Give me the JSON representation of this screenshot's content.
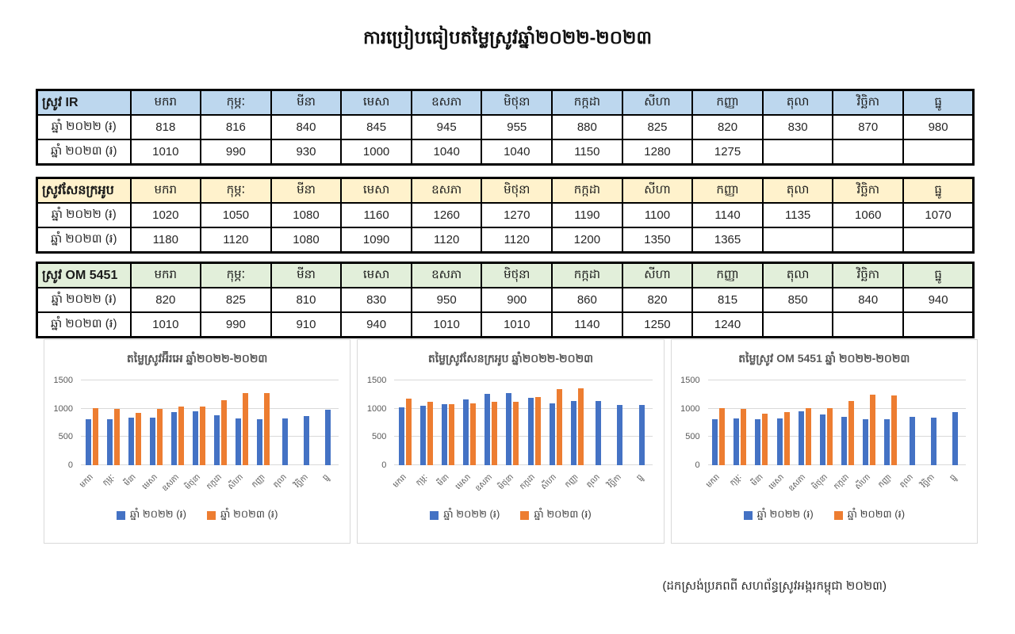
{
  "page": {
    "title": "ការប្រៀបធៀបតម្លៃស្រូវឆ្នាំ២០២២-២០២៣",
    "source_note": "(ដកស្រង់ប្រភពពី សហព័ន្ធស្រូវអង្ករកម្ពុជា ២០២៣)",
    "background": "#FFFFFF"
  },
  "months": [
    "មករា",
    "កុម្ភៈ",
    "មីនា",
    "មេសា",
    "ឧសភា",
    "មិថុនា",
    "កក្កដា",
    "សីហា",
    "កញ្ញា",
    "តុលា",
    "វិច្ឆិកា",
    "ធ្នូ"
  ],
  "tables": [
    {
      "id": "ir",
      "name": "ស្រូវ IR",
      "header_color": "#BDD7EE",
      "rows": [
        {
          "label": "ឆ្នាំ ២០២២ (៛)",
          "values": [
            818,
            816,
            840,
            845,
            945,
            955,
            880,
            825,
            820,
            830,
            870,
            980
          ]
        },
        {
          "label": "ឆ្នាំ ២០២៣ (៛)",
          "values": [
            1010,
            990,
            930,
            1000,
            1040,
            1040,
            1150,
            1280,
            1275,
            null,
            null,
            null
          ]
        }
      ]
    },
    {
      "id": "sen-kra-ob",
      "name": "ស្រូវសែនក្រអូប",
      "header_color": "#FFF2CC",
      "rows": [
        {
          "label": "ឆ្នាំ ២០២២ (៛)",
          "values": [
            1020,
            1050,
            1080,
            1160,
            1260,
            1270,
            1190,
            1100,
            1140,
            1135,
            1060,
            1070
          ]
        },
        {
          "label": "ឆ្នាំ ២០២៣ (៛)",
          "values": [
            1180,
            1120,
            1080,
            1090,
            1120,
            1120,
            1200,
            1350,
            1365,
            null,
            null,
            null
          ]
        }
      ]
    },
    {
      "id": "om-5451",
      "name": "ស្រូវ OM 5451",
      "header_color": "#E2EFDA",
      "rows": [
        {
          "label": "ឆ្នាំ ២០២២ (៛)",
          "values": [
            820,
            825,
            810,
            830,
            950,
            900,
            860,
            820,
            815,
            850,
            840,
            940
          ]
        },
        {
          "label": "ឆ្នាំ ២០២៣ (៛)",
          "values": [
            1010,
            990,
            910,
            940,
            1010,
            1010,
            1140,
            1250,
            1240,
            null,
            null,
            null
          ]
        }
      ]
    }
  ],
  "charts_common": {
    "legend": [
      {
        "label": "ឆ្នាំ ២០២២ (៛)",
        "color": "#4472C4"
      },
      {
        "label": "ឆ្នាំ ២០២៣ (៛)",
        "color": "#ED7D31"
      }
    ],
    "grid_color": "#D9D9D9",
    "axis_text_color": "#595959"
  },
  "chart_data": [
    {
      "type": "bar",
      "title": "តម្លៃស្រូវអ៊ីរអេ ឆ្នាំ២០២២-២០២៣",
      "categories": [
        "មករា",
        "កុម្ភៈ",
        "មីនា",
        "មេសា",
        "ឧសភា",
        "មិថុនា",
        "កក្កដា",
        "សីហា",
        "កញ្ញា",
        "តុលា",
        "វិច្ឆិកា",
        "ធ្នូ"
      ],
      "series": [
        {
          "name": "ឆ្នាំ ២០២២ (៛)",
          "color": "#4472C4",
          "values": [
            818,
            816,
            840,
            845,
            945,
            955,
            880,
            825,
            820,
            830,
            870,
            980
          ]
        },
        {
          "name": "ឆ្នាំ ២០២៣ (៛)",
          "color": "#ED7D31",
          "values": [
            1010,
            990,
            930,
            1000,
            1040,
            1040,
            1150,
            1280,
            1275,
            null,
            null,
            null
          ]
        }
      ],
      "xlabel": "",
      "ylabel": "",
      "ylim": [
        0,
        1500
      ],
      "yticks": [
        0,
        500,
        1000,
        1500
      ],
      "grid": true,
      "legend_position": "bottom"
    },
    {
      "type": "bar",
      "title": "តម្លៃស្រូវសែនក្រអូប ឆ្នាំ២០២២-២០២៣",
      "categories": [
        "មករា",
        "កុម្ភៈ",
        "មីនា",
        "មេសា",
        "ឧសភា",
        "មិថុនា",
        "កក្កដា",
        "សីហា",
        "កញ្ញា",
        "តុលា",
        "វិច្ឆិកា",
        "ធ្នូ"
      ],
      "series": [
        {
          "name": "ឆ្នាំ ២០២២ (៛)",
          "color": "#4472C4",
          "values": [
            1020,
            1050,
            1080,
            1160,
            1260,
            1270,
            1190,
            1100,
            1140,
            1135,
            1060,
            1070
          ]
        },
        {
          "name": "ឆ្នាំ ២០២៣ (៛)",
          "color": "#ED7D31",
          "values": [
            1180,
            1120,
            1080,
            1090,
            1120,
            1120,
            1200,
            1350,
            1365,
            null,
            null,
            null
          ]
        }
      ],
      "xlabel": "",
      "ylabel": "",
      "ylim": [
        0,
        1500
      ],
      "yticks": [
        0,
        500,
        1000,
        1500
      ],
      "grid": true,
      "legend_position": "bottom"
    },
    {
      "type": "bar",
      "title": "តម្លៃស្រូវ OM 5451 ឆ្នាំ ២០២២-២០២៣",
      "categories": [
        "មករា",
        "កុម្ភៈ",
        "មីនា",
        "មេសា",
        "ឧសភា",
        "មិថុនា",
        "កក្កដា",
        "សីហា",
        "កញ្ញា",
        "តុលា",
        "វិច្ឆិកា",
        "ធ្នូ"
      ],
      "series": [
        {
          "name": "ឆ្នាំ ២០២២ (៛)",
          "color": "#4472C4",
          "values": [
            820,
            825,
            810,
            830,
            950,
            900,
            860,
            820,
            815,
            850,
            840,
            940
          ]
        },
        {
          "name": "ឆ្នាំ ២០២៣ (៛)",
          "color": "#ED7D31",
          "values": [
            1010,
            990,
            910,
            940,
            1010,
            1010,
            1140,
            1250,
            1240,
            null,
            null,
            null
          ]
        }
      ],
      "xlabel": "",
      "ylabel": "",
      "ylim": [
        0,
        1500
      ],
      "yticks": [
        0,
        500,
        1000,
        1500
      ],
      "grid": true,
      "legend_position": "bottom"
    }
  ]
}
